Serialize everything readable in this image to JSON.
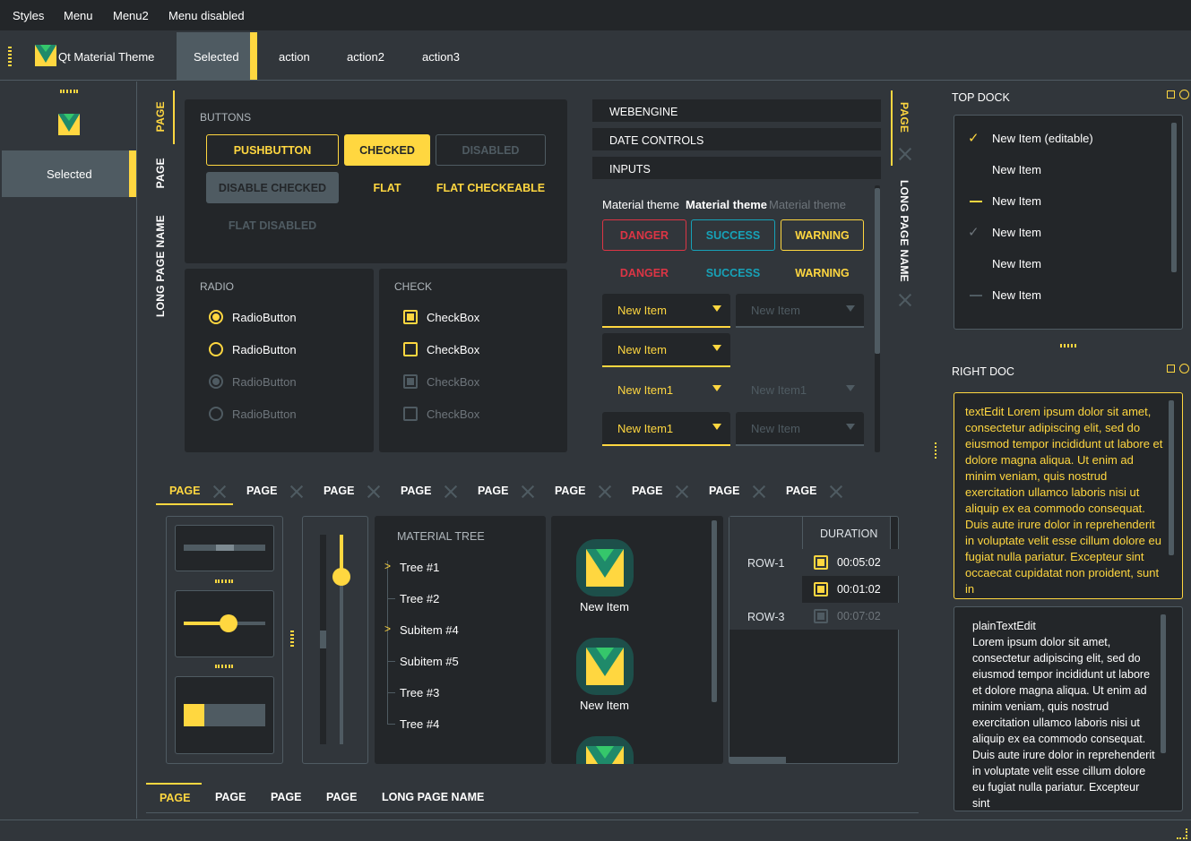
{
  "menubar": {
    "items": [
      "Styles",
      "Menu",
      "Menu2",
      "Menu disabled"
    ]
  },
  "toolbar": {
    "app_title": "Qt Material Theme",
    "selected": "Selected",
    "actions": [
      "action",
      "action2",
      "action3"
    ]
  },
  "left_panel": {
    "selected": "Selected"
  },
  "vertical_tabs_left": [
    "PAGE",
    "PAGE",
    "LONG PAGE NAME"
  ],
  "buttons_group": {
    "title": "BUTTONS",
    "pushbutton": "PUSHBUTTON",
    "checked": "CHECKED",
    "disabled": "DISABLED",
    "disable_checked": "DISABLE CHECKED",
    "flat": "FLAT",
    "flat_checkeable": "FLAT CHECKEABLE",
    "flat_disabled": "FLAT DISABLED"
  },
  "radio_group": {
    "title": "RADIO",
    "items": [
      "RadioButton",
      "RadioButton",
      "RadioButton",
      "RadioButton"
    ]
  },
  "check_group": {
    "title": "CHECK",
    "items": [
      "CheckBox",
      "CheckBox",
      "CheckBox",
      "CheckBox"
    ]
  },
  "accordion": {
    "items": [
      "WEBENGINE",
      "DATE CONTROLS",
      "INPUTS"
    ]
  },
  "inputs": {
    "labels": [
      "Material theme",
      "Material theme",
      "Material theme"
    ],
    "danger": "DANGER",
    "success": "SUCCESS",
    "warning": "WARNING",
    "combo1": "New Item",
    "combo1_disabled": "New Item",
    "combo2": "New Item",
    "combo3": "New Item1",
    "combo3_disabled": "New Item1",
    "combo4": "New Item1",
    "combo4_disabled": "New Item"
  },
  "vertical_tabs_right": [
    "PAGE",
    "LONG PAGE NAME"
  ],
  "bottom_tabs": [
    "PAGE",
    "PAGE",
    "PAGE",
    "PAGE",
    "PAGE",
    "PAGE",
    "PAGE",
    "PAGE",
    "PAGE"
  ],
  "slider_value": 0.55,
  "progress_value": 0.25,
  "vslider_value": 0.8,
  "tree": {
    "title": "MATERIAL TREE",
    "items": [
      "Tree #1",
      "Tree #2",
      "Subitem #4",
      "Subitem #5",
      "Tree #3",
      "Tree #4"
    ]
  },
  "icon_list": {
    "items": [
      "New Item",
      "New Item"
    ]
  },
  "table": {
    "header": "DURATION",
    "rows": [
      {
        "label": "ROW-1",
        "value": "00:05:02"
      },
      {
        "label": "",
        "value": "00:01:02"
      },
      {
        "label": "ROW-3",
        "value": "00:07:02"
      }
    ]
  },
  "footer_tabs": [
    "PAGE",
    "PAGE",
    "PAGE",
    "PAGE",
    "LONG PAGE NAME"
  ],
  "top_dock": {
    "title": "TOP DOCK",
    "items": [
      "New Item (editable)",
      "New Item",
      "New Item",
      "New Item",
      "New Item",
      "New Item"
    ]
  },
  "right_dock": {
    "title": "RIGHT DOC",
    "text_edit": "textEdit Lorem ipsum dolor sit amet, consectetur adipiscing elit, sed do eiusmod tempor incididunt ut labore et dolore magna aliqua. Ut enim ad minim veniam, quis nostrud exercitation ullamco laboris nisi ut aliquip ex ea commodo consequat. Duis aute irure dolor in reprehenderit in voluptate velit esse cillum dolore eu fugiat nulla pariatur. Excepteur sint occaecat cupidatat non proident, sunt in",
    "plain_title": "plainTextEdit",
    "plain_text": "Lorem ipsum dolor sit amet, consectetur adipiscing elit, sed do eiusmod tempor incididunt ut labore et dolore magna aliqua. Ut enim ad minim veniam, quis nostrud exercitation ullamco laboris nisi ut aliquip ex ea commodo consequat. Duis aute irure dolor in reprehenderit in voluptate velit esse cillum dolore eu fugiat nulla pariatur. Excepteur sint"
  },
  "colors": {
    "accent": "#ffd740",
    "background": "#31363b",
    "surface": "#232629",
    "border": "#4f5b62",
    "danger": "#dc3545",
    "success": "#17a2b8"
  }
}
